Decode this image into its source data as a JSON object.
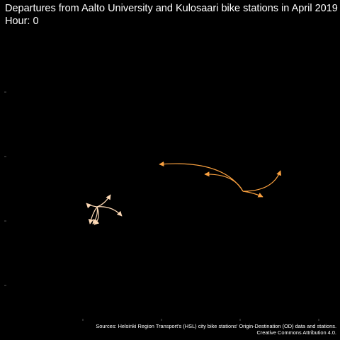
{
  "title": "Departures from Aalto University and Kulosaari bike stations in April 2019",
  "subtitle": "Hour: 0",
  "caption": {
    "line1": "Sources: Helsinki Region Transport's (HSL) city bike stations' Origin-Destination (OD) data and stations.",
    "line2": "Creative Commons Attribution 4.0."
  },
  "colors": {
    "background": "#000000",
    "text": "#ffffff",
    "aalto_flows": "#fdd9b5",
    "kulosaari_flows": "#f9a03f",
    "tick": "#555555"
  },
  "flows": {
    "aalto_university": {
      "color": "#fdd9b5"
    },
    "kulosaari": {
      "color": "#f9a03f"
    }
  }
}
